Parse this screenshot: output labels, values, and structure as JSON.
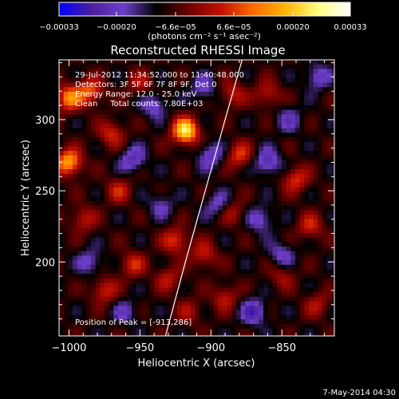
{
  "chart_data": {
    "type": "heatmap",
    "title": "Reconstructed RHESSI Image",
    "xlabel": "Heliocentric X (arcsec)",
    "ylabel": "Heliocentric Y (arcsec)",
    "xlim": [
      -1007,
      -813
    ],
    "ylim": [
      148,
      342
    ],
    "x_ticks": [
      -1000,
      -950,
      -900,
      -850
    ],
    "x_tick_labels": [
      "−1000",
      "−950",
      "−900",
      "−850"
    ],
    "y_ticks": [
      200,
      250,
      300
    ],
    "y_tick_labels": [
      "200",
      "250",
      "300"
    ],
    "colorbar": {
      "min": -0.00033,
      "max": 0.00033,
      "ticks": [
        -0.00033,
        -0.0002,
        -6.6e-05,
        6.6e-05,
        0.0002,
        0.00033
      ],
      "tick_labels": [
        "−0.00033",
        "−0.00020",
        "−6.6e−05",
        "6.6e−05",
        "0.00020",
        "0.00033"
      ],
      "colors": [
        "#0000ff",
        "#4b1f9c",
        "#6d3fc9",
        "#000000",
        "#6d0000",
        "#c21000",
        "#ff6a00",
        "#ffb400",
        "#ffff80",
        "#ffffff"
      ],
      "units_label": "(photons cm⁻² s⁻¹ asec⁻²)"
    },
    "annotations": {
      "time_range": "29-Jul-2012 11:34:52.000 to 11:40:48.000",
      "detectors": "Detectors: 3F 5F 6F 7F 8F 9F, Det 0",
      "energy_range": "Energy Range: 12.0 - 25.0 keV",
      "method_counts": "Clean     Total counts: 7.80E+03",
      "peak": "Position of Peak = [-913,286]"
    },
    "peak_position": [
      -913,
      286
    ],
    "limb_curve": [
      [
        -932,
        148
      ],
      [
        -918,
        200
      ],
      [
        -904,
        250
      ],
      [
        -890,
        300
      ],
      [
        -878,
        342
      ]
    ],
    "hot_spots": [
      {
        "x": -918,
        "y": 292,
        "v": 0.00033
      },
      {
        "x": -1000,
        "y": 270,
        "v": 0.00026
      },
      {
        "x": -1000,
        "y": 315,
        "v": 0.00022
      },
      {
        "x": -985,
        "y": 320,
        "v": 0.00018
      },
      {
        "x": -970,
        "y": 290,
        "v": 0.00014
      },
      {
        "x": -965,
        "y": 250,
        "v": 0.00012
      },
      {
        "x": -990,
        "y": 230,
        "v": 0.00012
      },
      {
        "x": -975,
        "y": 180,
        "v": 0.00014
      },
      {
        "x": -955,
        "y": 198,
        "v": 0.00013
      },
      {
        "x": -925,
        "y": 215,
        "v": 0.00016
      },
      {
        "x": -905,
        "y": 205,
        "v": 0.00013
      },
      {
        "x": -930,
        "y": 188,
        "v": 0.00011
      },
      {
        "x": -890,
        "y": 175,
        "v": 0.00012
      },
      {
        "x": -885,
        "y": 235,
        "v": 0.0001
      },
      {
        "x": -880,
        "y": 275,
        "v": 0.00015
      },
      {
        "x": -885,
        "y": 318,
        "v": 0.00012
      },
      {
        "x": -860,
        "y": 318,
        "v": 0.00012
      },
      {
        "x": -840,
        "y": 258,
        "v": 0.00015
      },
      {
        "x": -830,
        "y": 225,
        "v": 0.00013
      },
      {
        "x": -850,
        "y": 190,
        "v": 9e-05
      },
      {
        "x": -825,
        "y": 170,
        "v": 0.0001
      },
      {
        "x": -950,
        "y": 325,
        "v": 0.0001
      },
      {
        "x": -915,
        "y": 165,
        "v": 9e-05
      }
    ],
    "cold_spots": [
      {
        "x": -940,
        "y": 310,
        "v": -0.00012
      },
      {
        "x": -955,
        "y": 272,
        "v": -0.00014
      },
      {
        "x": -900,
        "y": 275,
        "v": -0.00013
      },
      {
        "x": -895,
        "y": 240,
        "v": -0.00011
      },
      {
        "x": -860,
        "y": 270,
        "v": -0.00015
      },
      {
        "x": -865,
        "y": 230,
        "v": -0.00012
      },
      {
        "x": -845,
        "y": 300,
        "v": -0.0001
      },
      {
        "x": -870,
        "y": 165,
        "v": -0.00016
      },
      {
        "x": -850,
        "y": 205,
        "v": -0.00011
      },
      {
        "x": -985,
        "y": 200,
        "v": -0.00011
      },
      {
        "x": -960,
        "y": 165,
        "v": -9e-05
      },
      {
        "x": -905,
        "y": 322,
        "v": -0.00011
      },
      {
        "x": -825,
        "y": 330,
        "v": -0.00012
      },
      {
        "x": -935,
        "y": 240,
        "v": -9e-05
      }
    ]
  },
  "footer": {
    "timestamp": "7-May-2014 04:30"
  }
}
